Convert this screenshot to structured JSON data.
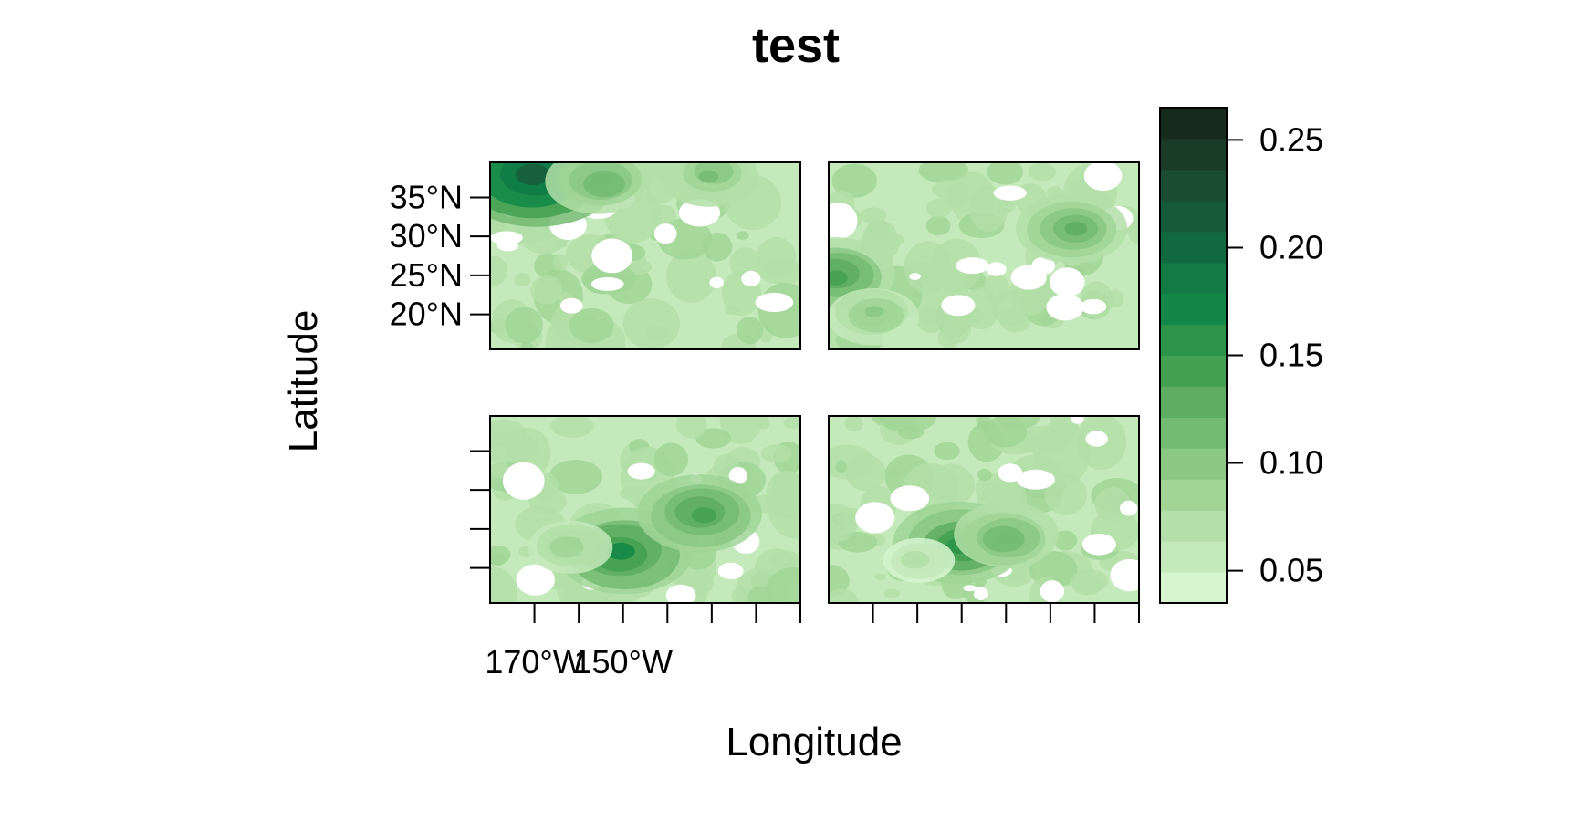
{
  "chart_data": {
    "type": "heatmap",
    "title": "test",
    "xlabel": "Longitude",
    "ylabel": "Latitude",
    "panel_count": 4,
    "layout": "2x2",
    "xlim": [
      -180,
      -110
    ],
    "ylim": [
      15.5,
      39.5
    ],
    "x_ticks": [
      -170,
      -160,
      -150,
      -140,
      -130,
      -120,
      -110
    ],
    "x_tick_labels": [
      "170°W",
      "150°W"
    ],
    "y_ticks": [
      20,
      25,
      30,
      35
    ],
    "y_tick_labels": [
      "20°N",
      "25°N",
      "30°N",
      "35°N"
    ],
    "colorbar": {
      "range": [
        0.035,
        0.265
      ],
      "ticks": [
        0.05,
        0.1,
        0.15,
        0.2,
        0.25
      ],
      "tick_labels": [
        "0.05",
        "0.10",
        "0.15",
        "0.20",
        "0.25"
      ],
      "levels": 15,
      "colors": [
        "#d7f6d0",
        "#c4e9bb",
        "#b3dfa8",
        "#a0d596",
        "#8ac884",
        "#74bb72",
        "#5dad62",
        "#43a050",
        "#2c9449",
        "#128747",
        "#117a45",
        "#13693f",
        "#175a3a",
        "#1a4c31",
        "#1a3c27",
        "#162b1c"
      ]
    },
    "panels": [
      {
        "name": "panel-1",
        "hotspots": [
          {
            "lon": -170,
            "lat": 38,
            "value": 0.22
          },
          {
            "lon": -155,
            "lat": 37,
            "value": 0.12
          },
          {
            "lon": -130,
            "lat": 38,
            "value": 0.11
          }
        ]
      },
      {
        "name": "panel-2",
        "hotspots": [
          {
            "lon": -178,
            "lat": 25,
            "value": 0.14
          },
          {
            "lon": -170,
            "lat": 20,
            "value": 0.1
          },
          {
            "lon": -125,
            "lat": 31,
            "value": 0.13
          }
        ]
      },
      {
        "name": "panel-3",
        "hotspots": [
          {
            "lon": -150,
            "lat": 22,
            "value": 0.17
          },
          {
            "lon": -132,
            "lat": 27,
            "value": 0.15
          },
          {
            "lon": -162,
            "lat": 23,
            "value": 0.09
          }
        ]
      },
      {
        "name": "panel-4",
        "hotspots": [
          {
            "lon": -150,
            "lat": 23,
            "value": 0.16
          },
          {
            "lon": -140,
            "lat": 24,
            "value": 0.12
          },
          {
            "lon": -160,
            "lat": 21,
            "value": 0.07
          }
        ]
      }
    ]
  }
}
